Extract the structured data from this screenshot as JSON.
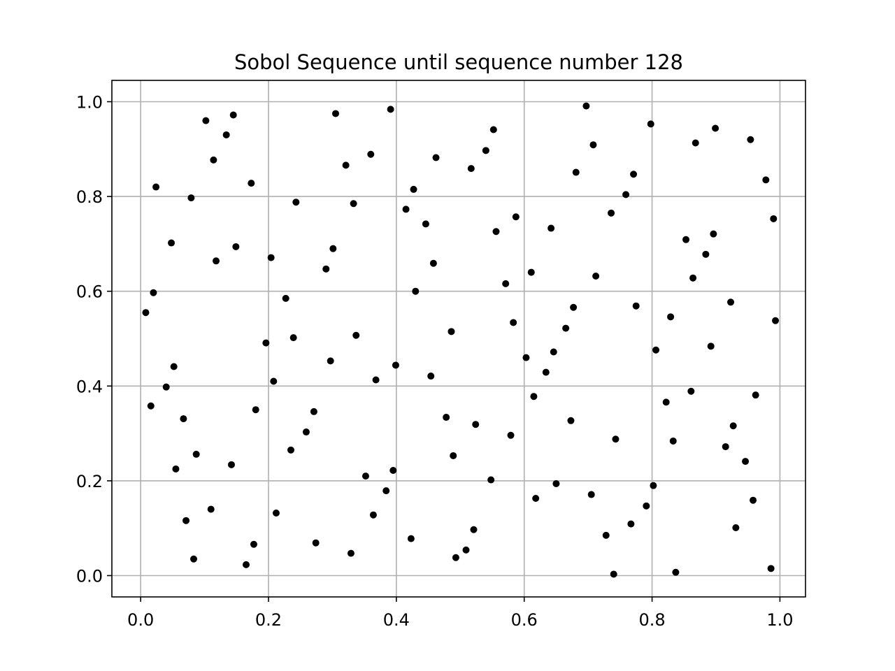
{
  "chart_data": {
    "type": "scatter",
    "title": "Sobol Sequence until sequence number 128",
    "xlabel": "",
    "ylabel": "",
    "xlim": [
      -0.045,
      1.04
    ],
    "ylim": [
      -0.045,
      1.045
    ],
    "xticks": [
      0.0,
      0.2,
      0.4,
      0.6,
      0.8,
      1.0
    ],
    "xtick_labels": [
      "0.0",
      "0.2",
      "0.4",
      "0.6",
      "0.8",
      "1.0"
    ],
    "yticks": [
      0.0,
      0.2,
      0.4,
      0.6,
      0.8,
      1.0
    ],
    "ytick_labels": [
      "0.0",
      "0.2",
      "0.4",
      "0.6",
      "0.8",
      "1.0"
    ],
    "grid": true,
    "legend": "none",
    "marker_color": "#000000",
    "grid_color": "#b0b0b0",
    "points": [
      [
        0.008,
        0.555
      ],
      [
        0.016,
        0.358
      ],
      [
        0.02,
        0.597
      ],
      [
        0.024,
        0.82
      ],
      [
        0.04,
        0.398
      ],
      [
        0.048,
        0.702
      ],
      [
        0.052,
        0.441
      ],
      [
        0.055,
        0.225
      ],
      [
        0.067,
        0.331
      ],
      [
        0.071,
        0.116
      ],
      [
        0.079,
        0.797
      ],
      [
        0.083,
        0.035
      ],
      [
        0.087,
        0.256
      ],
      [
        0.102,
        0.96
      ],
      [
        0.11,
        0.14
      ],
      [
        0.114,
        0.877
      ],
      [
        0.118,
        0.664
      ],
      [
        0.134,
        0.93
      ],
      [
        0.142,
        0.234
      ],
      [
        0.145,
        0.972
      ],
      [
        0.149,
        0.694
      ],
      [
        0.165,
        0.023
      ],
      [
        0.173,
        0.828
      ],
      [
        0.177,
        0.066
      ],
      [
        0.18,
        0.35
      ],
      [
        0.196,
        0.491
      ],
      [
        0.204,
        0.671
      ],
      [
        0.208,
        0.41
      ],
      [
        0.212,
        0.132
      ],
      [
        0.227,
        0.585
      ],
      [
        0.235,
        0.265
      ],
      [
        0.239,
        0.502
      ],
      [
        0.243,
        0.788
      ],
      [
        0.259,
        0.303
      ],
      [
        0.271,
        0.346
      ],
      [
        0.274,
        0.069
      ],
      [
        0.29,
        0.647
      ],
      [
        0.297,
        0.453
      ],
      [
        0.301,
        0.69
      ],
      [
        0.305,
        0.975
      ],
      [
        0.321,
        0.866
      ],
      [
        0.329,
        0.047
      ],
      [
        0.333,
        0.785
      ],
      [
        0.337,
        0.507
      ],
      [
        0.352,
        0.21
      ],
      [
        0.36,
        0.889
      ],
      [
        0.364,
        0.128
      ],
      [
        0.368,
        0.413
      ],
      [
        0.384,
        0.179
      ],
      [
        0.391,
        0.984
      ],
      [
        0.395,
        0.222
      ],
      [
        0.399,
        0.444
      ],
      [
        0.415,
        0.773
      ],
      [
        0.423,
        0.078
      ],
      [
        0.427,
        0.815
      ],
      [
        0.43,
        0.6
      ],
      [
        0.446,
        0.742
      ],
      [
        0.454,
        0.421
      ],
      [
        0.458,
        0.659
      ],
      [
        0.462,
        0.882
      ],
      [
        0.478,
        0.334
      ],
      [
        0.486,
        0.515
      ],
      [
        0.489,
        0.253
      ],
      [
        0.493,
        0.038
      ],
      [
        0.509,
        0.054
      ],
      [
        0.517,
        0.859
      ],
      [
        0.521,
        0.097
      ],
      [
        0.524,
        0.319
      ],
      [
        0.54,
        0.897
      ],
      [
        0.548,
        0.202
      ],
      [
        0.552,
        0.941
      ],
      [
        0.556,
        0.726
      ],
      [
        0.571,
        0.616
      ],
      [
        0.579,
        0.296
      ],
      [
        0.583,
        0.534
      ],
      [
        0.587,
        0.757
      ],
      [
        0.603,
        0.46
      ],
      [
        0.611,
        0.64
      ],
      [
        0.615,
        0.378
      ],
      [
        0.618,
        0.163
      ],
      [
        0.634,
        0.429
      ],
      [
        0.642,
        0.733
      ],
      [
        0.646,
        0.472
      ],
      [
        0.65,
        0.194
      ],
      [
        0.665,
        0.522
      ],
      [
        0.673,
        0.327
      ],
      [
        0.677,
        0.566
      ],
      [
        0.681,
        0.851
      ],
      [
        0.697,
        0.991
      ],
      [
        0.705,
        0.171
      ],
      [
        0.708,
        0.909
      ],
      [
        0.712,
        0.632
      ],
      [
        0.728,
        0.085
      ],
      [
        0.736,
        0.765
      ],
      [
        0.74,
        0.003
      ],
      [
        0.743,
        0.288
      ],
      [
        0.759,
        0.804
      ],
      [
        0.767,
        0.109
      ],
      [
        0.771,
        0.847
      ],
      [
        0.775,
        0.569
      ],
      [
        0.791,
        0.147
      ],
      [
        0.798,
        0.953
      ],
      [
        0.802,
        0.19
      ],
      [
        0.806,
        0.476
      ],
      [
        0.822,
        0.366
      ],
      [
        0.829,
        0.546
      ],
      [
        0.833,
        0.284
      ],
      [
        0.837,
        0.007
      ],
      [
        0.853,
        0.709
      ],
      [
        0.861,
        0.389
      ],
      [
        0.864,
        0.628
      ],
      [
        0.868,
        0.913
      ],
      [
        0.884,
        0.678
      ],
      [
        0.892,
        0.484
      ],
      [
        0.896,
        0.721
      ],
      [
        0.899,
        0.944
      ],
      [
        0.915,
        0.272
      ],
      [
        0.923,
        0.577
      ],
      [
        0.927,
        0.316
      ],
      [
        0.931,
        0.101
      ],
      [
        0.946,
        0.241
      ],
      [
        0.954,
        0.92
      ],
      [
        0.958,
        0.159
      ],
      [
        0.962,
        0.381
      ],
      [
        0.978,
        0.835
      ],
      [
        0.986,
        0.015
      ],
      [
        0.99,
        0.753
      ],
      [
        0.993,
        0.538
      ]
    ]
  }
}
